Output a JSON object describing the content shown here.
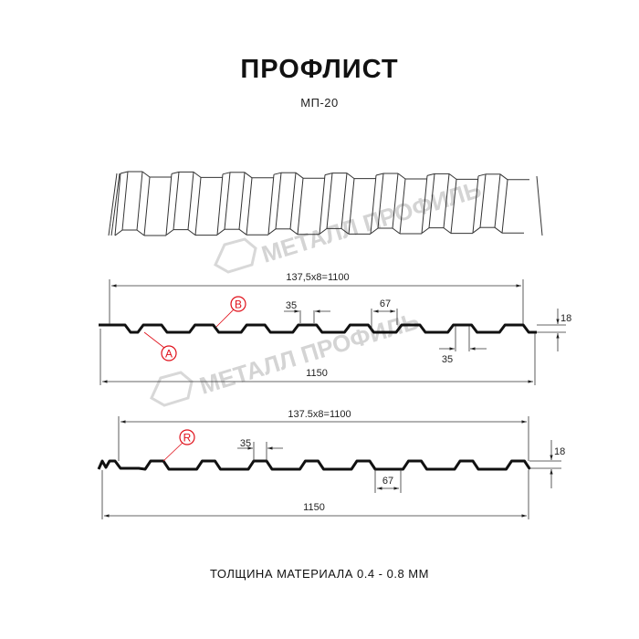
{
  "header": {
    "title": "ПРОФЛИСТ",
    "subtitle": "МП-20"
  },
  "watermark": {
    "text": "МЕТАЛЛ ПРОФИЛЬ"
  },
  "profile_1": {
    "pitch_dim": "137,5x8=1100",
    "total_width": "1150",
    "crest_width": "35",
    "trough_width": "67",
    "bottom_crest_width": "35",
    "height": "18",
    "markers": [
      "A",
      "B"
    ]
  },
  "profile_2": {
    "pitch_dim": "137.5x8=1100",
    "total_width": "1150",
    "crest_width": "35",
    "trough_width": "67",
    "height": "18",
    "markers": [
      "R"
    ]
  },
  "footer": {
    "material_thickness": "ТОЛЩИНА МАТЕРИАЛА 0.4 - 0.8 ММ"
  },
  "colors": {
    "profile": "#111111",
    "marker": "#e0101a",
    "watermark": "#d4d4d4"
  }
}
